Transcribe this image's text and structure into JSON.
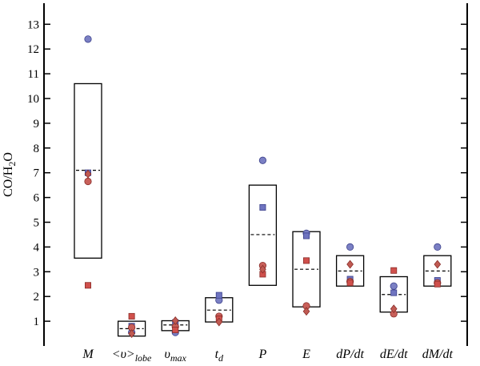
{
  "chart_data": {
    "type": "box-scatter",
    "ylabel": "CO/H2O",
    "ylim": [
      0,
      14
    ],
    "yticks": [
      1,
      2,
      3,
      4,
      5,
      6,
      7,
      8,
      9,
      10,
      11,
      12,
      13
    ],
    "categories": [
      {
        "main": "M",
        "sub": ""
      },
      {
        "main": "<υ>",
        "sub": "lobe"
      },
      {
        "main": "υ",
        "sub": "max"
      },
      {
        "main": "t",
        "sub": "d"
      },
      {
        "main": "P",
        "sub": ""
      },
      {
        "main": "E",
        "sub": ""
      },
      {
        "main": "dP/dt",
        "sub": ""
      },
      {
        "main": "dE/dt",
        "sub": ""
      },
      {
        "main": "dM/dt",
        "sub": ""
      }
    ],
    "boxes": [
      {
        "low": 3.55,
        "high": 10.6,
        "mean": 7.1
      },
      {
        "low": 0.4,
        "high": 1.0,
        "mean": 0.7
      },
      {
        "low": 0.62,
        "high": 1.02,
        "mean": 0.85
      },
      {
        "low": 0.97,
        "high": 1.95,
        "mean": 1.45
      },
      {
        "low": 2.45,
        "high": 6.5,
        "mean": 4.5
      },
      {
        "low": 1.58,
        "high": 4.62,
        "mean": 3.1
      },
      {
        "low": 2.42,
        "high": 3.65,
        "mean": 3.03
      },
      {
        "low": 1.37,
        "high": 2.8,
        "mean": 2.08
      },
      {
        "low": 2.42,
        "high": 3.65,
        "mean": 3.03
      }
    ],
    "series": [
      {
        "name": "blue circles",
        "marker": "circle",
        "color": "#7b80c4",
        "values": [
          12.4,
          0.55,
          0.55,
          1.85,
          7.5,
          4.55,
          4.0,
          2.42,
          4.0
        ]
      },
      {
        "name": "blue squares",
        "marker": "square",
        "color": "#6f74c0",
        "values": [
          7.0,
          0.8,
          0.95,
          2.05,
          5.6,
          4.45,
          2.7,
          2.15,
          2.65
        ]
      },
      {
        "name": "red circles",
        "marker": "circle",
        "color": "#c8605a",
        "values": [
          6.65,
          0.75,
          0.78,
          1.2,
          3.25,
          1.62,
          2.6,
          1.3,
          2.55
        ]
      },
      {
        "name": "red squares",
        "marker": "square",
        "color": "#d0504c",
        "values": [
          2.45,
          1.2,
          0.65,
          1.1,
          2.9,
          3.45,
          2.55,
          3.05,
          2.5
        ]
      },
      {
        "name": "red diamonds",
        "marker": "diamond",
        "color": "#c05a52",
        "values": [
          6.95,
          0.5,
          1.02,
          0.97,
          3.1,
          1.4,
          3.3,
          1.5,
          3.3
        ]
      }
    ]
  }
}
